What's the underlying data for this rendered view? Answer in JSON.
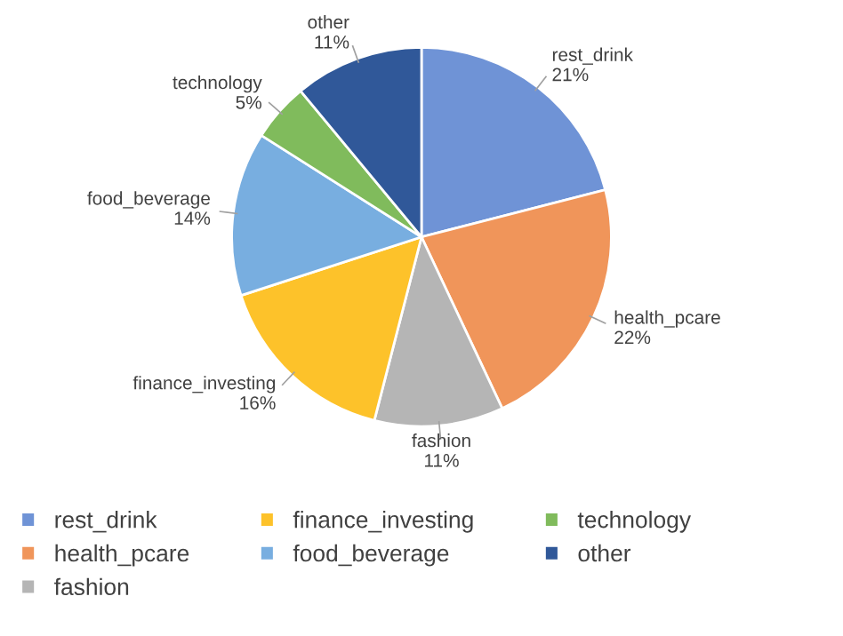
{
  "chart_data": {
    "type": "pie",
    "categories": [
      "rest_drink",
      "health_pcare",
      "fashion",
      "finance_investing",
      "food_beverage",
      "technology",
      "other"
    ],
    "values": [
      21,
      22,
      11,
      16,
      14,
      5,
      11
    ],
    "colors": [
      "#6f93d6",
      "#f0955a",
      "#b5b5b5",
      "#fdc22a",
      "#78aee0",
      "#80bb5c",
      "#305899"
    ],
    "value_labels": [
      "21%",
      "22%",
      "11%",
      "16%",
      "14%",
      "5%",
      "11%"
    ],
    "legend": "bottom"
  }
}
